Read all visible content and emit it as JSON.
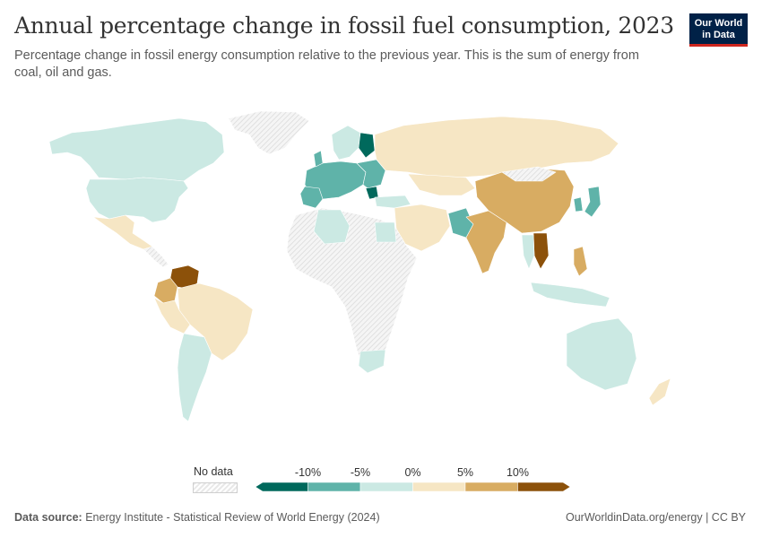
{
  "title": "Annual percentage change in fossil fuel consumption, 2023",
  "subtitle": "Percentage change in fossil energy consumption relative to the previous year. This is the sum of energy from coal, oil and gas.",
  "logo": {
    "line1": "Our World",
    "line2": "in Data"
  },
  "legend": {
    "no_data_label": "No data",
    "tick_labels": [
      "-10%",
      "-5%",
      "0%",
      "5%",
      "10%"
    ],
    "bins": [
      {
        "color": "#00695c"
      },
      {
        "color": "#5fb3a9"
      },
      {
        "color": "#cbe9e3"
      },
      {
        "color": "#f6e6c4"
      },
      {
        "color": "#d8ac62"
      },
      {
        "color": "#8c510a"
      }
    ]
  },
  "colors": {
    "strong_decrease": "#00695c",
    "decrease": "#5fb3a9",
    "slight_decrease": "#cbe9e3",
    "slight_increase": "#f6e6c4",
    "increase": "#d8ac62",
    "strong_increase": "#8c510a",
    "no_data": "#eeeeee"
  },
  "footer": {
    "source_label": "Data source:",
    "source_text": "Energy Institute - Statistical Review of World Energy (2024)",
    "right_text": "OurWorldinData.org/energy | CC BY"
  }
}
